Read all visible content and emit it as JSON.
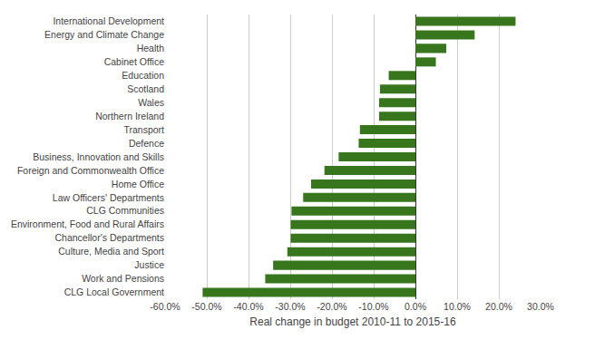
{
  "chart_data": {
    "type": "bar",
    "orientation": "horizontal",
    "x_label": "Real change in budget 2010-11 to 2015-16",
    "categories": [
      "International Development",
      "Energy and Climate Change",
      "Health",
      "Cabinet Office",
      "Education",
      "Scotland",
      "Wales",
      "Northern Ireland",
      "Transport",
      "Defence",
      "Business, Innovation and Skills",
      "Foreign and Commonwealth Office",
      "Home Office",
      "Law Officers' Departments",
      "CLG Communities",
      "Environment, Food and Rural Affairs",
      "Chancellor's Departments",
      "Culture, Media and Sport",
      "Justice",
      "Work and Pensions",
      "CLG Local Government"
    ],
    "values": [
      24,
      14.2,
      7.4,
      4.9,
      -6.4,
      -8.5,
      -8.7,
      -8.7,
      -13.3,
      -13.6,
      -18.4,
      -21.8,
      -25,
      -26.9,
      -29.7,
      -29.9,
      -29.9,
      -30.7,
      -34.1,
      -36,
      -51
    ],
    "color": "#38761d",
    "xlim": [
      -60,
      30
    ],
    "xticks": [
      {
        "value": -60,
        "label": "-60.0%"
      },
      {
        "value": -50,
        "label": "-50.0%"
      },
      {
        "value": -40,
        "label": "-40.0%"
      },
      {
        "value": -30,
        "label": "-30.0%"
      },
      {
        "value": -20,
        "label": "-20.0%"
      },
      {
        "value": -10,
        "label": "-10.0%"
      },
      {
        "value": 0,
        "label": "0.0%"
      },
      {
        "value": 10,
        "label": "10.0%"
      },
      {
        "value": 20,
        "label": "20.0%"
      },
      {
        "value": 30,
        "label": "30.0%"
      }
    ],
    "grid": true
  }
}
